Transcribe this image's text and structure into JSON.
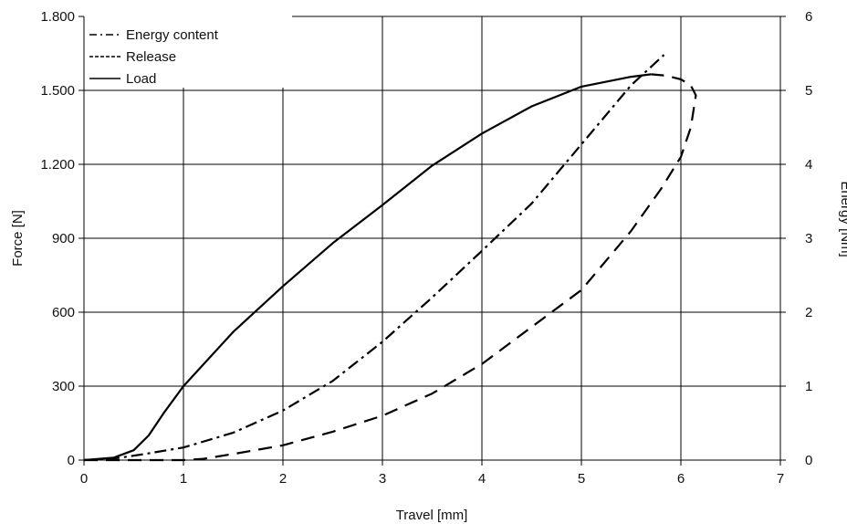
{
  "chart_data": {
    "type": "line",
    "xlabel": "Travel [mm]",
    "ylabel": "Force [N]",
    "y2label": "Energy [Nm]",
    "xlim": [
      0,
      7
    ],
    "ylim": [
      0,
      1800
    ],
    "y2lim": [
      0,
      6
    ],
    "x_ticks": [
      0,
      1,
      2,
      3,
      4,
      5,
      6,
      7
    ],
    "x_tick_labels": [
      "0",
      "1",
      "2",
      "3",
      "4",
      "5",
      "6",
      "7"
    ],
    "y_ticks": [
      0,
      300,
      600,
      900,
      1200,
      1500,
      1800
    ],
    "y_tick_labels": [
      "0",
      "300",
      "600",
      "900",
      "1.200",
      "1.500",
      "1.800"
    ],
    "y2_ticks": [
      0,
      1,
      2,
      3,
      4,
      5,
      6
    ],
    "y2_tick_labels": [
      "0",
      "1",
      "2",
      "3",
      "4",
      "5",
      "6"
    ],
    "grid": true,
    "legend_position": "top-left",
    "series": [
      {
        "name": "Energy content",
        "style": "dash-dot",
        "axis": "right",
        "x": [
          0,
          0.3,
          0.6,
          1.0,
          1.5,
          2.0,
          2.5,
          3.0,
          3.5,
          4.0,
          4.5,
          5.0,
          5.5,
          5.83
        ],
        "y": [
          0,
          0.02,
          0.08,
          0.17,
          0.37,
          0.67,
          1.07,
          1.6,
          2.2,
          2.83,
          3.47,
          4.27,
          5.07,
          5.48
        ]
      },
      {
        "name": "Release",
        "style": "dashed",
        "axis": "left",
        "x": [
          0,
          0.5,
          1.0,
          1.2,
          1.5,
          2.0,
          2.5,
          3.0,
          3.5,
          4.0,
          4.5,
          5.0,
          5.5,
          5.8,
          6.0,
          6.1,
          6.15,
          6.1,
          6.0,
          5.85,
          5.7
        ],
        "y": [
          0,
          0,
          0,
          5,
          25,
          60,
          115,
          180,
          270,
          390,
          540,
          690,
          930,
          1100,
          1230,
          1350,
          1480,
          1520,
          1545,
          1560,
          1565
        ]
      },
      {
        "name": "Load",
        "style": "solid",
        "axis": "left",
        "x": [
          0,
          0.3,
          0.5,
          0.65,
          0.8,
          1.0,
          1.5,
          2.0,
          2.5,
          3.0,
          3.5,
          4.0,
          4.5,
          5.0,
          5.5,
          5.7
        ],
        "y": [
          0,
          10,
          40,
          100,
          190,
          300,
          520,
          705,
          880,
          1035,
          1195,
          1325,
          1435,
          1515,
          1555,
          1565
        ]
      }
    ]
  }
}
